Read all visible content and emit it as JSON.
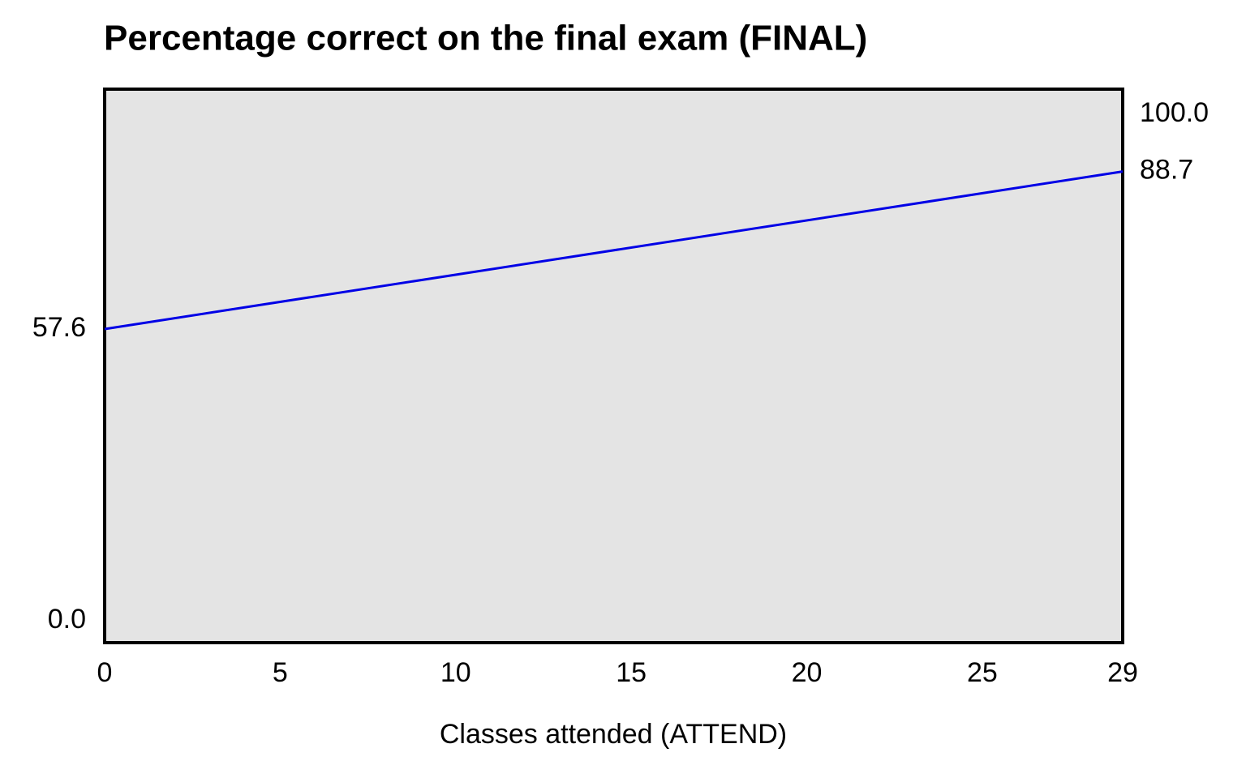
{
  "chart_data": {
    "type": "line",
    "title": "Percentage correct on the final exam (FINAL)",
    "x_label": "Classes attended (ATTEND)",
    "x": [
      0,
      29
    ],
    "series": [
      {
        "color": "#0000e6",
        "values": [
          57.6,
          88.7
        ]
      }
    ],
    "xlim": [
      0,
      29
    ],
    "xticks": [
      0,
      5,
      10,
      15,
      20,
      25,
      29
    ],
    "ylim": [
      0,
      100
    ],
    "yticks": [
      {
        "value": 0,
        "label": "0.0"
      },
      57.6
    ],
    "y2lim": [
      0,
      100
    ],
    "y2ticks": [
      {
        "value": 100,
        "label": "100.0"
      },
      88.7
    ],
    "grid": false
  }
}
